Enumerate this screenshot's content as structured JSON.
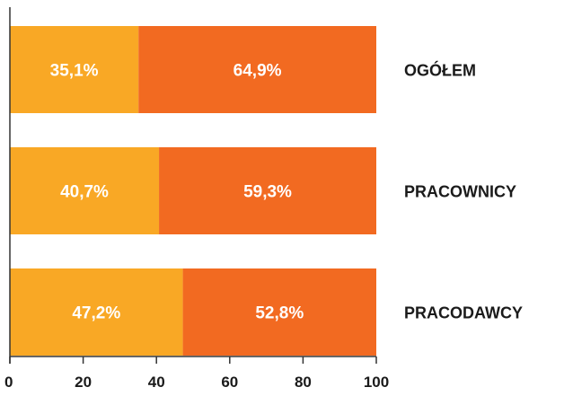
{
  "chart_data": {
    "type": "bar",
    "orientation": "horizontal",
    "stacked": true,
    "categories": [
      "OGÓŁEM",
      "PRACOWNICY",
      "PRACODAWCY"
    ],
    "series": [
      {
        "values": [
          35.1,
          40.7,
          47.2
        ],
        "labels": [
          "35,1%",
          "40,7%",
          "47,2%"
        ]
      },
      {
        "values": [
          64.9,
          59.3,
          52.8
        ],
        "labels": [
          "64,9%",
          "59,3%",
          "52,8%"
        ]
      }
    ],
    "xlim": [
      0,
      100
    ],
    "xticks": [
      0,
      20,
      40,
      60,
      80,
      100
    ],
    "xtick_labels": [
      "0",
      "20",
      "40",
      "60",
      "80",
      "100"
    ],
    "title": "",
    "xlabel": "",
    "ylabel": "",
    "legend": "none",
    "grid": false
  },
  "colors": {
    "series_1": "#F9A825",
    "series_2": "#F26A21",
    "axis": "#333333"
  }
}
